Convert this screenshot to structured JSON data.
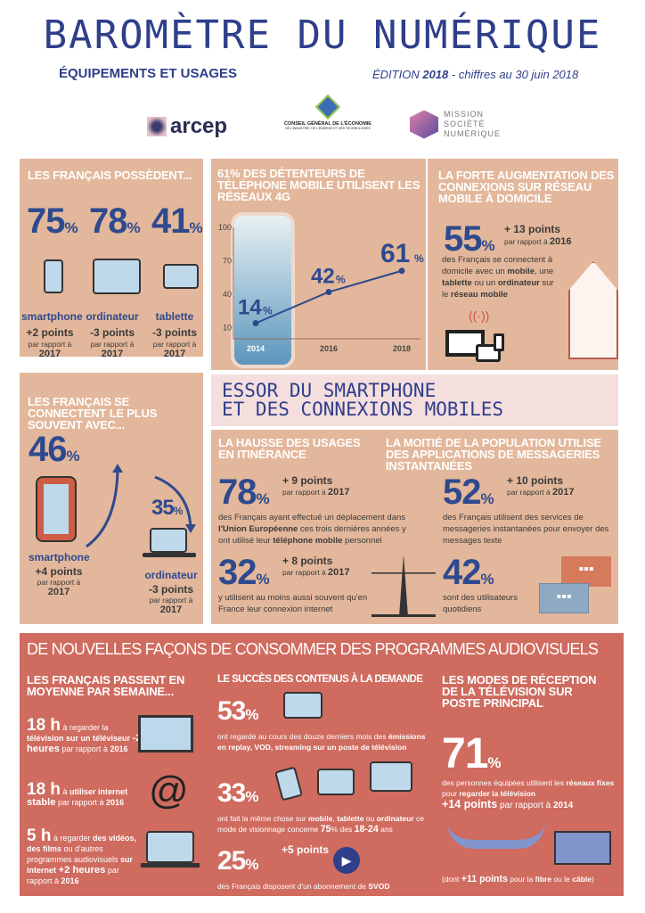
{
  "header": {
    "title": "BAROMÈTRE DU NUMÉRIQUE",
    "subtitle": "ÉQUIPEMENTS ET USAGES",
    "edition_prefix": "ÉDITION ",
    "edition_year": "2018",
    "edition_suffix": " - chiffres au 30 juin 2018",
    "logos": {
      "arcep": "arcep",
      "cge_line1": "CONSEIL GÉNÉRAL DE L'ÉCONOMIE",
      "cge_line2": "DE L'INDUSTRIE, DE L'ÉNERGIE ET DES TECHNOLOGIES",
      "msn": [
        "MISSION",
        "SOCIÉTÉ",
        "NUMÉRIQUE"
      ]
    }
  },
  "colors": {
    "tan": "#e3b79b",
    "red": "#cf6b5f",
    "blue": "#2e4a8e",
    "pink": "#f4dede"
  },
  "possession": {
    "title": "LES FRANÇAIS POSSÈDENT...",
    "items": [
      {
        "value": "75",
        "unit": "%",
        "label": "smartphone",
        "change": "+2 points",
        "ref": "par rapport à",
        "year": "2017",
        "icon": "smartphone-icon"
      },
      {
        "value": "78",
        "unit": "%",
        "label": "ordinateur",
        "change": "-3 points",
        "ref": "par rapport à",
        "year": "2017",
        "icon": "laptop-icon"
      },
      {
        "value": "41",
        "unit": "%",
        "label": "tablette",
        "change": "-3 points",
        "ref": "par rapport à",
        "year": "2017",
        "icon": "tablet-icon"
      }
    ]
  },
  "chart_data": {
    "type": "line",
    "title": "61% DES DÉTENTEURS DE TÉLÉPHONE MOBILE UTILISENT LES RÉSEAUX 4G",
    "x": [
      2014,
      2016,
      2018
    ],
    "values": [
      14,
      42,
      61
    ],
    "data_labels": [
      "14",
      "42",
      "61"
    ],
    "unit": "%",
    "yticks": [
      10,
      40,
      70,
      100
    ],
    "xticks": [
      "2014",
      "2016",
      "2018"
    ],
    "ylim": [
      0,
      100
    ],
    "grid": false
  },
  "home": {
    "title": "LA FORTE AUGMENTATION DES CONNEXIONS SUR RÉSEAU MOBILE À DOMICILE",
    "value": "55",
    "unit": "%",
    "change": "+ 13 points",
    "ref": "par rapport à ",
    "year": "2016",
    "text": [
      {
        "t": "des Français se connectent à domicile avec un "
      },
      {
        "t": "mobile",
        "b": 1
      },
      {
        "t": ", une "
      },
      {
        "t": "tablette",
        "b": 1
      },
      {
        "t": " ou un "
      },
      {
        "t": "ordinateur",
        "b": 1
      },
      {
        "t": " sur le "
      },
      {
        "t": "réseau mobile",
        "b": 1
      }
    ]
  },
  "connect": {
    "title": "LES FRANÇAIS SE CONNECTENT LE PLUS SOUVENT AVEC...",
    "items": [
      {
        "value": "46",
        "unit": "%",
        "label": "smartphone",
        "change": "+4 points",
        "ref": "par rapport à",
        "year": "2017"
      },
      {
        "value": "35",
        "unit": "%",
        "label": "ordinateur",
        "change": "-3 points",
        "ref": "par rapport à",
        "year": "2017"
      }
    ]
  },
  "banner": {
    "line1": "ESSOR DU SMARTPHONE",
    "line2": "ET DES CONNEXIONS MOBILES"
  },
  "roaming": {
    "title": "LA HAUSSE DES USAGES EN ITINÉRANCE",
    "stat1": {
      "value": "78",
      "unit": "%",
      "change": "+ 9 points",
      "ref": "par rapport à ",
      "year": "2017",
      "text": [
        {
          "t": "des Français ayant effectué un déplacement dans "
        },
        {
          "t": "l'Union Européenne",
          "b": 1
        },
        {
          "t": " ces trois dernières années y ont utilisé leur "
        },
        {
          "t": "téléphone mobile",
          "b": 1
        },
        {
          "t": " personnel"
        }
      ]
    },
    "stat2": {
      "value": "32",
      "unit": "%",
      "change": "+ 8 points",
      "ref": "par rapport à ",
      "year": "2017",
      "text": [
        {
          "t": "y utilisent au moins aussi souvent qu'en France leur connexion internet"
        }
      ]
    }
  },
  "messaging": {
    "title": "LA MOITIÉ DE LA POPULATION  UTILISE DES APPLICATIONS DE MESSAGERIES INSTANTANÉES",
    "stat1": {
      "value": "52",
      "unit": "%",
      "change": "+ 10 points",
      "ref": "par rapport à ",
      "year": "2017",
      "text": [
        {
          "t": "des Français utilisent des services de messageries instantanées pour envoyer des messages texte"
        }
      ]
    },
    "stat2": {
      "value": "42",
      "unit": "%",
      "text": [
        {
          "t": "sont des utilisateurs quotidiens"
        }
      ]
    }
  },
  "av": {
    "title": "DE NOUVELLES FAÇONS DE CONSOMMER DES PROGRAMMES AUDIOVISUELS",
    "week": {
      "title": "LES FRANÇAIS PASSENT EN MOYENNE PAR SEMAINE...",
      "items": [
        {
          "value": "18 h",
          "text": [
            {
              "t": " à regarder la "
            },
            {
              "t": "télévision sur un téléviseur",
              "b": 1
            },
            {
              "t": " "
            },
            {
              "t": "-2 heures",
              "b": 2
            },
            {
              "t": " par rapport à "
            },
            {
              "t": "2016",
              "b": 1
            }
          ]
        },
        {
          "value": "18 h",
          "text": [
            {
              "t": " à "
            },
            {
              "t": "utiliser internet",
              "b": 1
            },
            {
              "t": " "
            },
            {
              "t": "stable",
              "b": 2
            },
            {
              "t": " par rapport à "
            },
            {
              "t": "2016",
              "b": 1
            }
          ]
        },
        {
          "value": "5 h",
          "text": [
            {
              "t": " à regarder "
            },
            {
              "t": "des vidéos, des films",
              "b": 1
            },
            {
              "t": " ou d'autres programmes audiovisuels "
            },
            {
              "t": "sur internet",
              "b": 1
            },
            {
              "t": " "
            },
            {
              "t": "+2 heures",
              "b": 2
            },
            {
              "t": " par rapport à "
            },
            {
              "t": "2016",
              "b": 1
            }
          ]
        }
      ]
    },
    "demand": {
      "title": "LE SUCCÈS DES CONTENUS À LA DEMANDE",
      "items": [
        {
          "value": "53",
          "unit": "%",
          "text": [
            {
              "t": "ont regardé au cours des douze derniers mois des "
            },
            {
              "t": "émissions en replay, VOD, streaming sur un poste de télévision",
              "b": 1
            }
          ]
        },
        {
          "value": "33",
          "unit": "%",
          "text": [
            {
              "t": "ont fait la même chose sur "
            },
            {
              "t": "mobile",
              "b": 1
            },
            {
              "t": ", "
            },
            {
              "t": "tablette",
              "b": 1
            },
            {
              "t": " ou "
            },
            {
              "t": "ordinateur",
              "b": 1
            },
            {
              "t": " ce mode de visionnage concerne "
            },
            {
              "t": "75",
              "b": 2
            },
            {
              "t": "% des "
            },
            {
              "t": "18-24",
              "b": 2
            },
            {
              "t": " ans"
            }
          ]
        },
        {
          "value": "25",
          "unit": "%",
          "change": "+5 points",
          "text": [
            {
              "t": "des Français disposent d'un abonnement de "
            },
            {
              "t": "SVOD",
              "b": 1
            }
          ]
        }
      ]
    },
    "reception": {
      "title": "LES MODES DE RÉCEPTION DE LA TÉLÉVISION SUR POSTE PRINCIPAL",
      "value": "71",
      "unit": "%",
      "text": [
        {
          "t": "des personnes équipées utilisent les "
        },
        {
          "t": "réseaux fixes",
          "b": 1
        },
        {
          "t": " pour "
        },
        {
          "t": "regarder la télévision",
          "b": 1
        }
      ],
      "change": [
        {
          "t": "+14 points",
          "b": 2
        },
        {
          "t": " par rapport à "
        },
        {
          "t": "2014",
          "b": 1
        }
      ],
      "note": [
        {
          "t": "(dont "
        },
        {
          "t": "+11 points",
          "b": 2
        },
        {
          "t": " pour la "
        },
        {
          "t": "fibre",
          "b": 1
        },
        {
          "t": " ou le "
        },
        {
          "t": "câble",
          "b": 1
        },
        {
          "t": ")"
        }
      ]
    }
  }
}
